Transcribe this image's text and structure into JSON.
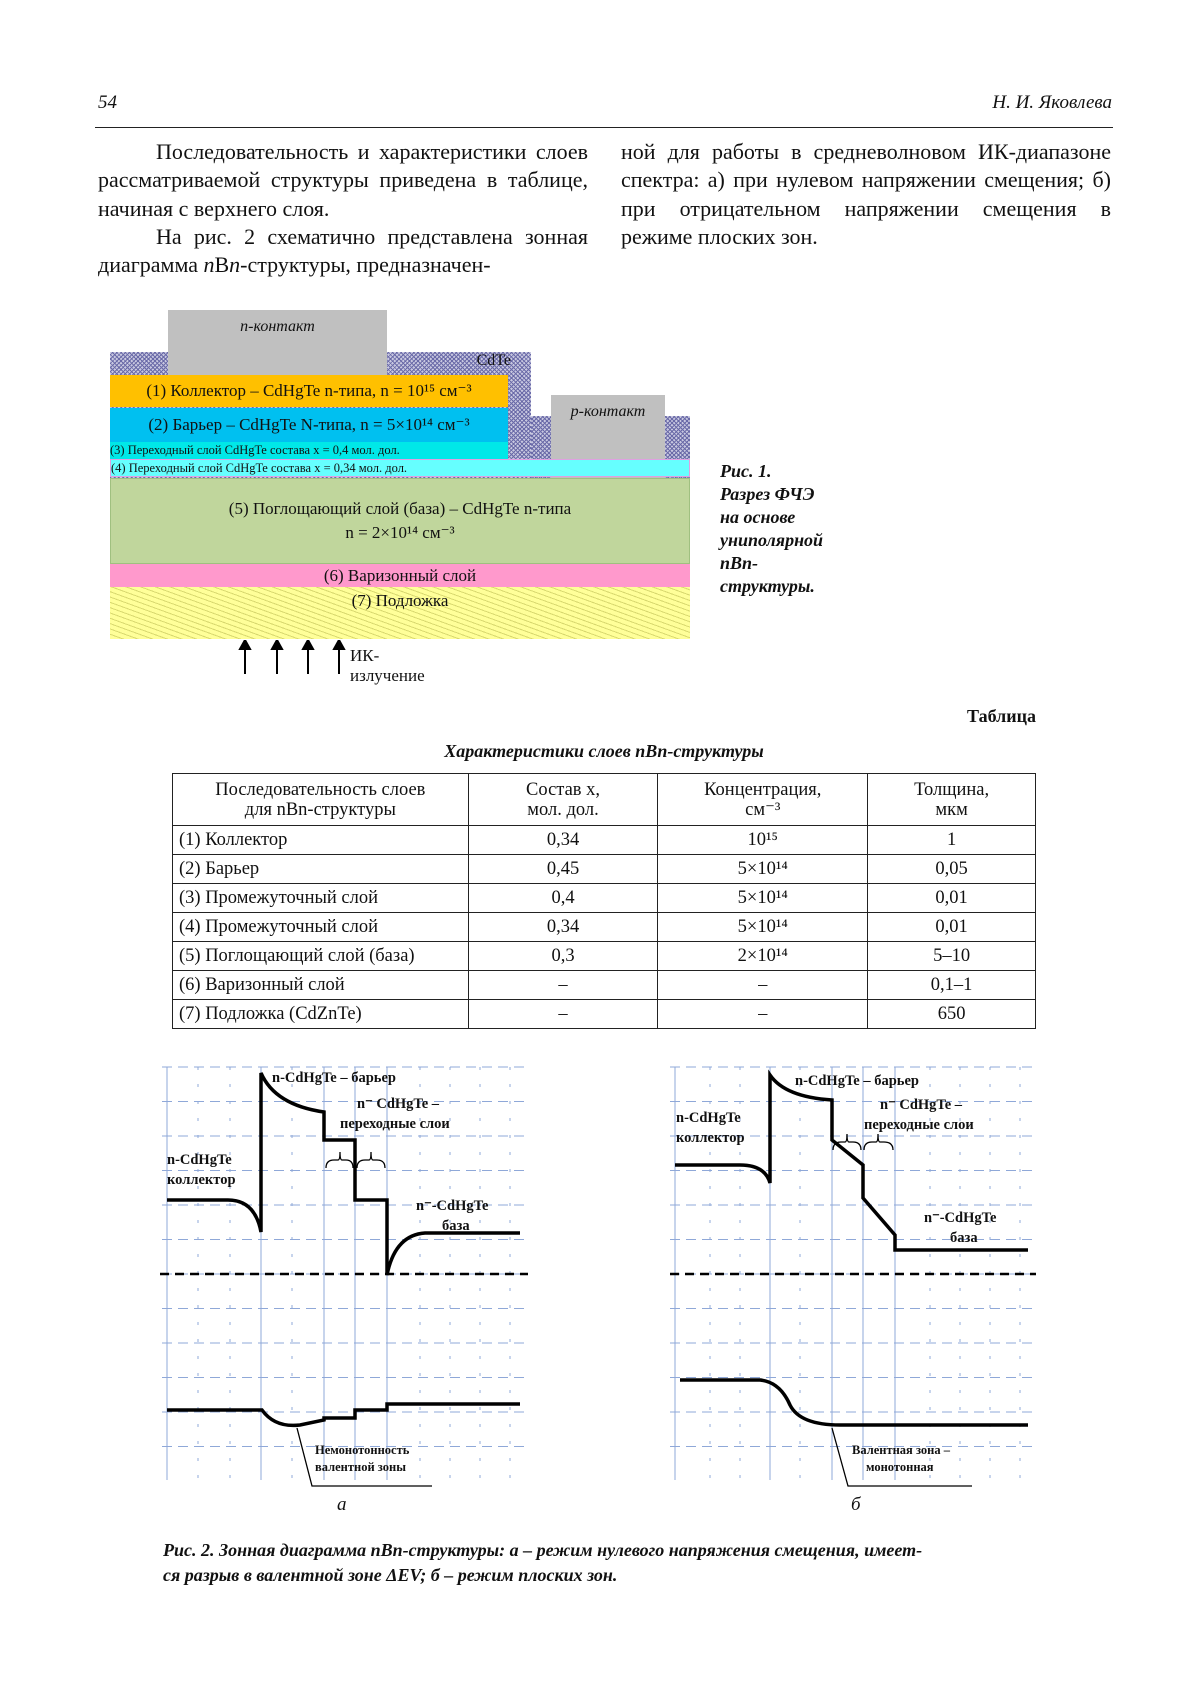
{
  "header": {
    "page_number": "54",
    "author": "Н. И. Яковлева"
  },
  "text": {
    "left_p1": "Последовательность и характеристики слоев рассматриваемой структуры приведена в таблице, начиная с верхнего слоя.",
    "left_p2_a": "На рис. 2 схематично представлена зонная диаграмма ",
    "left_p2_n1": "n",
    "left_p2_B": "B",
    "left_p2_n2": "n",
    "left_p2_b": "-структуры, предназначен-",
    "right_p": "ной для работы в средневолновом ИК-диапазоне спектра: а) при нулевом напряжении смещения; б) при отрицательном напряжении смещения в режиме плоских зон."
  },
  "fig1": {
    "n_contact": "n-контакт",
    "p_contact": "p-контакт",
    "cdte": "CdTe",
    "layer1": "(1) Коллектор – CdHgTe n-типа, n = 10¹⁵ см⁻³",
    "layer2": "(2) Барьер – CdHgTe N-типа, n = 5×10¹⁴ см⁻³",
    "layer3": "(3) Переходный слой CdHgTe состава x = 0,4 мол. дол.",
    "layer4": "(4) Переходный слой CdHgTe состава x = 0,34 мол. дол.",
    "layer5_line1": "(5) Поглощающий слой (база) – CdHgTe n-типа",
    "layer5_line2": "n = 2×10¹⁴ см⁻³",
    "layer6": "(6) Варизонный слой",
    "layer7": "(7) Подложка",
    "ir": "ИК-излучение",
    "caption_line1": "Рис. 1. Разрез ФЧЭ на основе униполярной",
    "caption_line2": "nBn-структуры.",
    "colors": {
      "collector": "#ffc000",
      "barrier": "#00c0f0",
      "layer3": "#00e8e8",
      "layer4": "#66ffff",
      "base": "#c0d69c",
      "graded": "#ff99cc",
      "substrate": "#ffff99",
      "contact": "#c0c0c0"
    }
  },
  "table": {
    "label": "Таблица",
    "title": "Характеристики слоев nBn-структуры",
    "headers": [
      [
        "Последовательность слоев",
        "для nBn-структуры"
      ],
      [
        "Состав x,",
        "мол. дол."
      ],
      [
        "Концентрация,",
        "см⁻³"
      ],
      [
        "Толщина,",
        "мкм"
      ]
    ],
    "rows": [
      [
        "(1) Коллектор",
        "0,34",
        "10¹⁵",
        "1"
      ],
      [
        "(2) Барьер",
        "0,45",
        "5×10¹⁴",
        "0,05"
      ],
      [
        "(3) Промежуточный слой",
        "0,4",
        "5×10¹⁴",
        "0,01"
      ],
      [
        "(4) Промежуточный слой",
        "0,34",
        "5×10¹⁴",
        "0,01"
      ],
      [
        "(5) Поглощающий слой (база)",
        "0,3",
        "2×10¹⁴",
        "5–10"
      ],
      [
        "(6) Варизонный слой",
        "–",
        "–",
        "0,1–1"
      ],
      [
        "(7) Подложка (CdZnTe)",
        "–",
        "–",
        "650"
      ]
    ]
  },
  "fig2": {
    "a": {
      "barrier": "n-CdHgTe – барьер",
      "trans1": "n⁻ CdHgTe –",
      "trans2": "переходные слои",
      "coll1": "n-CdHgTe",
      "coll2": "коллектор",
      "base1": "n⁻-CdHgTe",
      "base2": "база",
      "val1": "Немонотонность",
      "val2": "валентной зоны",
      "label": "а"
    },
    "b": {
      "barrier": "n-CdHgTe – барьер",
      "trans1": "n⁻ CdHgTe –",
      "trans2": "переходные слои",
      "coll1": "n-CdHgTe",
      "coll2": "коллектор",
      "base1": "n⁻-CdHgTe",
      "base2": "база",
      "val1": "Валентная зона –",
      "val2": "монотонная",
      "label": "б"
    },
    "caption_line1": "Рис. 2. Зонная диаграмма nBn-структуры: а – режим нулевого напряжения смещения, имеет-",
    "caption_line2": "ся разрыв в валентной зоне ΔEV; б – режим плоских зон."
  }
}
